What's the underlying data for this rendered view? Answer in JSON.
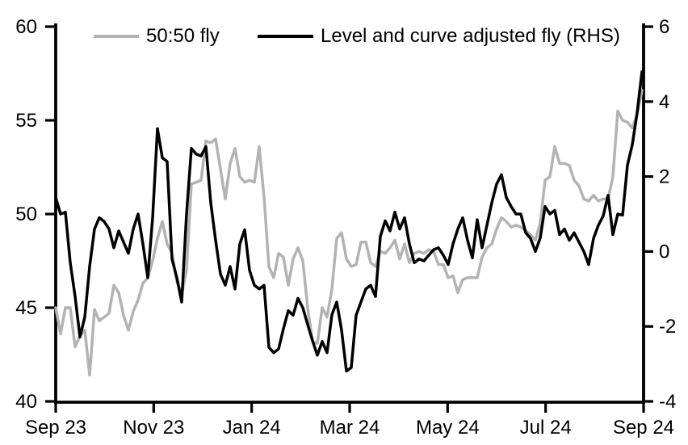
{
  "figure": {
    "background": "#ffffff",
    "text_color": "#000000",
    "legend": [
      {
        "label": "50:50 fly",
        "color": "#b3b3b3"
      },
      {
        "label": "Level and curve adjusted fly (RHS)",
        "color": "#000000"
      }
    ]
  },
  "chart_data": {
    "type": "line",
    "title": "",
    "grid": false,
    "legend_position": "top",
    "x_axis": {
      "tick_labels": [
        "Sep 23",
        "Nov 23",
        "Jan 24",
        "Mar 24",
        "May 24",
        "Jul 24",
        "Sep 24"
      ]
    },
    "left_axis": {
      "range": [
        40,
        60
      ],
      "ticks": [
        60,
        55,
        50,
        45,
        40
      ]
    },
    "right_axis": {
      "range": [
        -4,
        6
      ],
      "ticks": [
        6,
        4,
        2,
        0,
        -2,
        -4
      ]
    },
    "series": [
      {
        "name": "50:50 fly",
        "axis": "left",
        "color": "#b3b3b3",
        "values": [
          45.0,
          43.6,
          45.0,
          45.0,
          42.9,
          43.5,
          43.8,
          41.4,
          44.9,
          44.3,
          44.5,
          44.7,
          46.2,
          45.8,
          44.6,
          43.8,
          44.8,
          45.4,
          46.3,
          46.6,
          47.5,
          48.7,
          49.6,
          48.4,
          47.9,
          46.4,
          45.7,
          47.0,
          51.6,
          51.7,
          51.8,
          53.9,
          53.8,
          54.0,
          52.4,
          50.8,
          52.7,
          53.5,
          52.0,
          51.7,
          51.8,
          51.7,
          53.6,
          50.9,
          47.2,
          46.6,
          47.9,
          47.7,
          46.2,
          47.6,
          48.2,
          47.5,
          45.0,
          43.2,
          43.1,
          45.0,
          44.5,
          46.0,
          48.7,
          49.0,
          47.6,
          47.2,
          47.3,
          48.5,
          48.5,
          47.4,
          47.2,
          48.0,
          47.9,
          48.2,
          48.6,
          47.6,
          48.4,
          47.4,
          47.9,
          48.0,
          47.9,
          48.1,
          48.0,
          47.3,
          47.3,
          46.6,
          46.7,
          45.8,
          46.5,
          46.6,
          46.6,
          46.6,
          47.7,
          48.2,
          48.4,
          49.2,
          49.8,
          49.6,
          49.3,
          49.4,
          49.3,
          49.1,
          48.9,
          48.6,
          49.5,
          51.8,
          52.0,
          53.6,
          52.7,
          52.7,
          52.6,
          51.8,
          51.5,
          50.8,
          50.7,
          51.0,
          50.7,
          50.8,
          50.8,
          52.0,
          55.5,
          55.0,
          54.9,
          54.6,
          55.3,
          56.6
        ]
      },
      {
        "name": "Level and curve adjusted fly (RHS)",
        "axis": "right",
        "color": "#000000",
        "values": [
          1.44,
          1.0,
          1.05,
          -0.3,
          -1.2,
          -2.28,
          -1.75,
          -0.4,
          0.6,
          0.9,
          0.8,
          0.6,
          0.1,
          0.55,
          0.25,
          -0.05,
          0.6,
          1.0,
          0.2,
          -0.7,
          0.9,
          3.28,
          2.5,
          2.4,
          -0.2,
          -0.7,
          -1.35,
          1.0,
          2.75,
          2.6,
          2.55,
          2.8,
          1.3,
          0.3,
          -0.6,
          -0.9,
          -0.4,
          -1.0,
          0.2,
          0.58,
          -0.5,
          -0.9,
          -1.0,
          -0.9,
          -2.56,
          -2.7,
          -2.6,
          -2.06,
          -1.58,
          -1.7,
          -1.25,
          -1.5,
          -1.95,
          -2.38,
          -2.77,
          -2.4,
          -2.7,
          -1.69,
          -1.35,
          -2.1,
          -3.19,
          -3.1,
          -1.7,
          -1.35,
          -1.0,
          -0.9,
          -1.2,
          0.4,
          0.82,
          0.55,
          1.05,
          0.6,
          0.9,
          0.2,
          -0.3,
          -0.2,
          -0.25,
          -0.1,
          0.05,
          0.1,
          -0.1,
          -0.35,
          0.2,
          0.6,
          0.9,
          0.3,
          -0.17,
          0.85,
          0.1,
          0.7,
          1.3,
          1.8,
          2.05,
          1.44,
          1.2,
          1.0,
          1.0,
          0.5,
          0.35,
          0.0,
          0.36,
          1.2,
          1.0,
          1.1,
          0.45,
          0.6,
          0.3,
          0.5,
          0.25,
          0.0,
          -0.35,
          0.35,
          0.7,
          0.95,
          1.5,
          0.45,
          1.0,
          0.97,
          2.3,
          2.85,
          3.7,
          4.8
        ]
      }
    ]
  }
}
